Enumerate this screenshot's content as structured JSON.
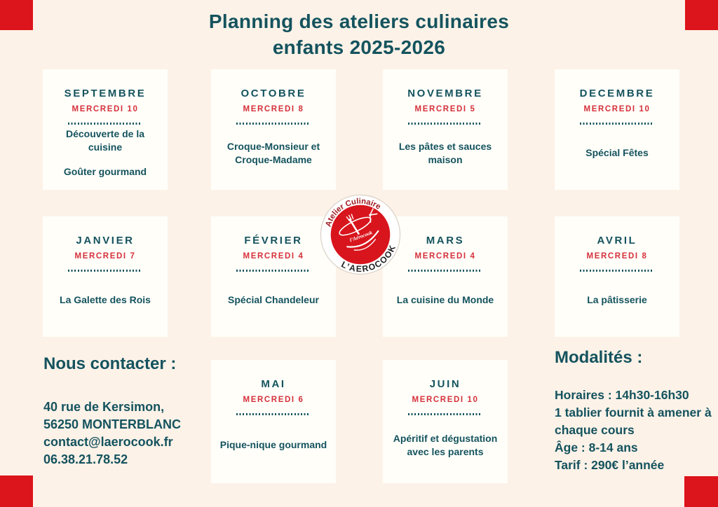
{
  "title": {
    "line1": "Planning des ateliers culinaires",
    "line2": "enfants 2025-2026"
  },
  "months": [
    {
      "name": "SEPTEMBRE",
      "date": "MERCREDI 10",
      "topics": [
        "Découverte de la cuisine",
        "Goûter gourmand"
      ]
    },
    {
      "name": "OCTOBRE",
      "date": "MERCREDI 8",
      "topics": [
        "Croque-Monsieur et Croque-Madame"
      ]
    },
    {
      "name": "NOVEMBRE",
      "date": "MERCREDI 5",
      "topics": [
        "Les pâtes et sauces maison"
      ]
    },
    {
      "name": "DECEMBRE",
      "date": "MERCREDI 10",
      "topics": [
        "Spécial Fêtes"
      ]
    },
    {
      "name": "JANVIER",
      "date": "MERCREDI 7",
      "topics": [
        "La Galette des Rois"
      ]
    },
    {
      "name": "FÉVRIER",
      "date": "MERCREDI 4",
      "topics": [
        "Spécial Chandeleur"
      ]
    },
    {
      "name": "MARS",
      "date": "MERCREDI 4",
      "topics": [
        "La cuisine du Monde"
      ]
    },
    {
      "name": "AVRIL",
      "date": "MERCREDI 8",
      "topics": [
        "La pâtisserie"
      ]
    },
    {
      "name": "MAI",
      "date": "MERCREDI 6",
      "topics": [
        "Pique-nique gourmand"
      ]
    },
    {
      "name": "JUIN",
      "date": "MERCREDI 10",
      "topics": [
        "Apéritif et dégustation avec les parents"
      ]
    }
  ],
  "logo": {
    "arc_top": "Atelier Culinaire",
    "arc_bottom": "L’AEROCOOK",
    "script": "l’Aérocook"
  },
  "contact": {
    "heading": "Nous contacter :",
    "lines": [
      "40 rue de Kersimon,",
      "56250 MONTERBLANC",
      "contact@laerocook.fr",
      "06.38.21.78.52"
    ]
  },
  "modalites": {
    "heading": "Modalités :",
    "lines": [
      "Horaires : 14h30-16h30",
      "1 tablier fournit à amener à chaque cours",
      "Âge : 8-14 ans",
      "Tarif : 290€ l’année"
    ]
  },
  "colors": {
    "background": "#fdf2e8",
    "card": "#fffef9",
    "teal": "#14535e",
    "red_text": "#d5303a",
    "corner_red": "#dc141b",
    "logo_red": "#d8151d",
    "logo_dark_red": "#9e1b20",
    "logo_text_black": "#1f1f1f",
    "logo_ring_edge": "#d8cfc6"
  }
}
